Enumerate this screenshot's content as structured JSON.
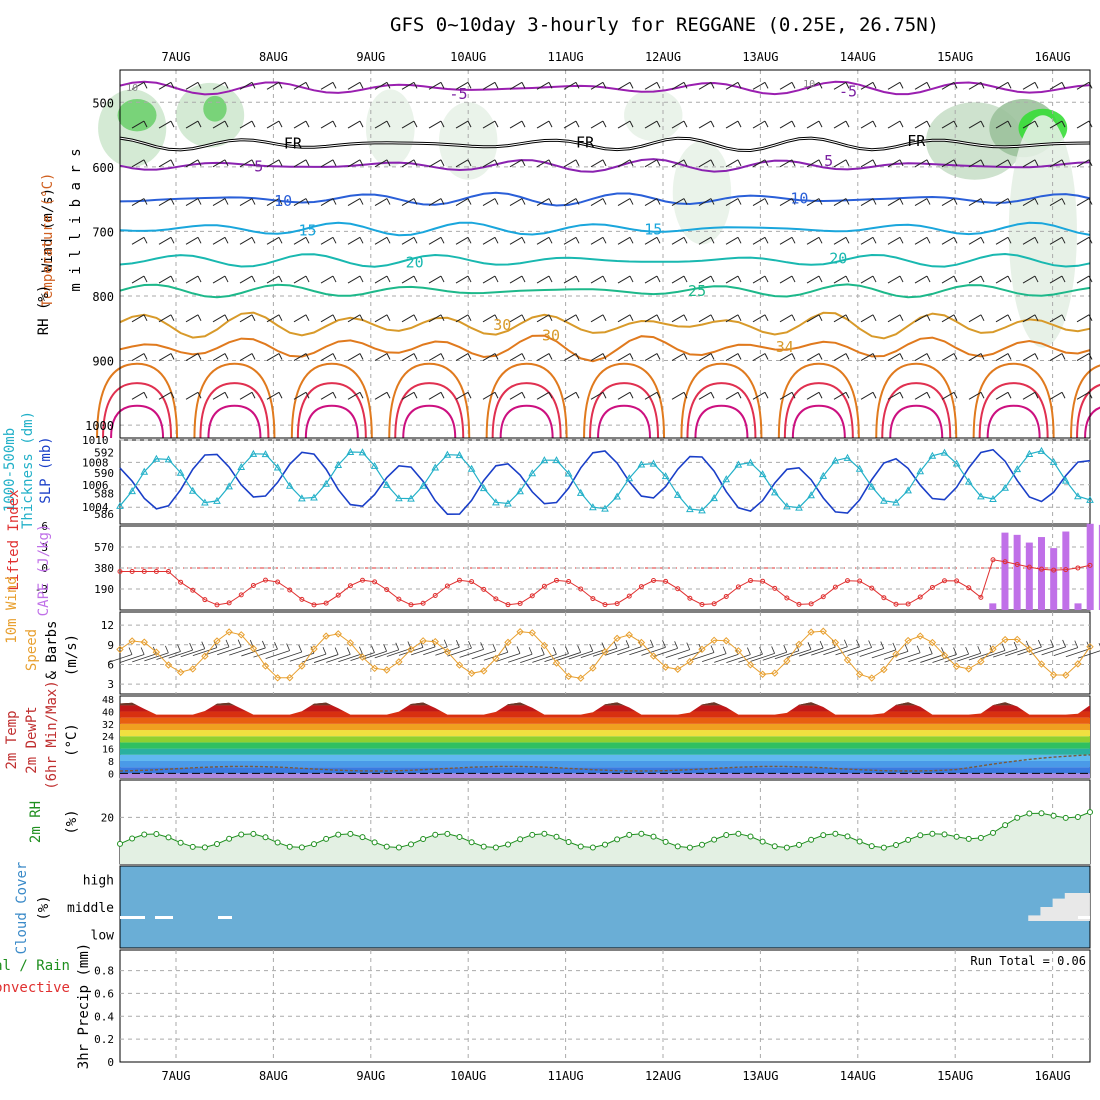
{
  "title": "GFS 0~10day 3-hourly for REGGANE (0.25E, 26.75N)",
  "date_labels": [
    "7AUG",
    "8AUG",
    "9AUG",
    "10AUG",
    "11AUG",
    "12AUG",
    "13AUG",
    "14AUG",
    "15AUG",
    "16AUG"
  ],
  "chart_data": [
    {
      "id": "upper",
      "type": "heatmap",
      "ylabels": [
        "Wind (m/s)",
        "Temperature (°C)",
        "RH (%)",
        "m i l l i b a r s"
      ],
      "yticks": [
        500,
        600,
        700,
        800,
        900,
        1000
      ],
      "ylim": [
        450,
        1020
      ],
      "isotherm_labels": [
        "10",
        "10",
        "-5",
        "-5",
        "FR",
        "FR",
        "FR",
        "5",
        "5",
        "10",
        "10",
        "15",
        "15",
        "20",
        "20",
        "25",
        "30",
        "34",
        "30"
      ],
      "isotherms": [
        {
          "value": -5,
          "p": 478,
          "color": "#9a1fb0"
        },
        {
          "value": 0,
          "p": 565,
          "color": "#000000"
        },
        {
          "value": 5,
          "p": 598,
          "color": "#8a22b0"
        },
        {
          "value": 10,
          "p": 650,
          "color": "#2a5fd8"
        },
        {
          "value": 15,
          "p": 696,
          "color": "#1aa6dc"
        },
        {
          "value": 20,
          "p": 745,
          "color": "#19b8b0"
        },
        {
          "value": 25,
          "p": 792,
          "color": "#1db88a"
        },
        {
          "value": 30,
          "p": 845,
          "color": "#d89a2a"
        },
        {
          "value": 34,
          "p": 880,
          "color": "#e07a1e"
        }
      ]
    },
    {
      "id": "slp",
      "type": "line",
      "ylabels": [
        "1000-500mb",
        "Thickness (dm)",
        "SLP (mb)"
      ],
      "left_ticks": [
        586,
        588,
        590,
        592
      ],
      "right_ticks": [
        1004,
        1006,
        1008,
        1010
      ],
      "left_lim": [
        585,
        593.2
      ],
      "right_lim": [
        1002.5,
        1010
      ],
      "slp_base": 1006.2,
      "slp_amp": 2.2,
      "thick_base": 589.2,
      "thick_amp": 2.4
    },
    {
      "id": "cape",
      "type": "bar",
      "ylabels": [
        "Lifted Index",
        "CAPE (J/kg)"
      ],
      "li_ticks": [
        -3,
        0,
        3,
        6
      ],
      "li_lim": [
        -6,
        6
      ],
      "cape_ticks": [
        190,
        380,
        570
      ],
      "cape_lim": [
        0,
        760
      ],
      "cape_bars": [
        60,
        700,
        680,
        610,
        660,
        560,
        710,
        60,
        780,
        770
      ]
    },
    {
      "id": "wind10m",
      "type": "line",
      "ylabels": [
        "10m Wind",
        "Speed",
        "& Barbs",
        "(m/s)"
      ],
      "yticks": [
        3,
        6,
        9,
        12
      ],
      "ylim": [
        1.5,
        14
      ]
    },
    {
      "id": "temp2m",
      "type": "area",
      "ylabels": [
        "2m Temp",
        "2m DewPt",
        "(6hr Min/Max)",
        "(°C)"
      ],
      "yticks": [
        0,
        8,
        16,
        24,
        32,
        40,
        48
      ],
      "ylim": [
        -3,
        50
      ]
    },
    {
      "id": "rh2m",
      "type": "line",
      "ylabels": [
        "2m RH",
        "(%)"
      ],
      "yticks": [
        20
      ],
      "ylim": [
        0,
        36
      ]
    },
    {
      "id": "cloud",
      "type": "area",
      "ylabels": [
        "Cloud Cover",
        "(%)"
      ],
      "levels": [
        "high",
        "middle",
        "low"
      ]
    },
    {
      "id": "precip",
      "type": "bar",
      "ylabels": [
        "Total / Rain",
        "Convective",
        "3hr Precip (mm)"
      ],
      "yticks": [
        0,
        0.2,
        0.4,
        0.6,
        0.8
      ],
      "ylim": [
        0,
        0.98
      ],
      "run_total": "Run Total = 0.06",
      "bars": [
        {
          "x": 9.7,
          "total": 0.06
        }
      ]
    }
  ],
  "colors": {
    "rh_band": "#3cb83c",
    "slp": "#1a3fc8",
    "thickness": "#22b0c8",
    "lifted_index": "#e03030",
    "cape": "#c070e8",
    "wind10m": "#e8a030",
    "rh2m": "#1f8f1f",
    "cloud": "#6aaed6"
  }
}
